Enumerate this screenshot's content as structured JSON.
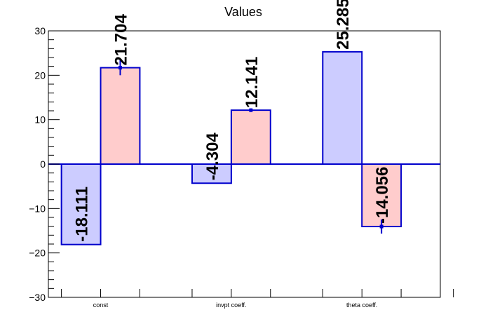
{
  "chart_data": {
    "type": "bar",
    "title": "Values",
    "categories": [
      "const",
      "invpt coeff.",
      "theta coeff."
    ],
    "ylim": [
      -30,
      30
    ],
    "yticks": [
      -30,
      -20,
      -10,
      0,
      10,
      20,
      30
    ],
    "ytick_labels": [
      "−30",
      "−20",
      "−10",
      "0",
      "10",
      "20",
      "30"
    ],
    "series": [
      {
        "values": [
          -18.111,
          -4.304,
          25.285
        ],
        "labels": [
          "-18.111",
          "-4.304",
          "25.285"
        ],
        "errors": [
          0,
          0,
          0
        ],
        "color": "#ccccff"
      },
      {
        "values": [
          21.704,
          12.141,
          -14.056
        ],
        "labels": [
          "21.704",
          "12.141",
          "-14.056"
        ],
        "errors": [
          1.7,
          0.4,
          1.6
        ],
        "color": "#ffcccc"
      }
    ],
    "bar_edge_color": "#0000cc",
    "grid": false,
    "legend": "none"
  }
}
